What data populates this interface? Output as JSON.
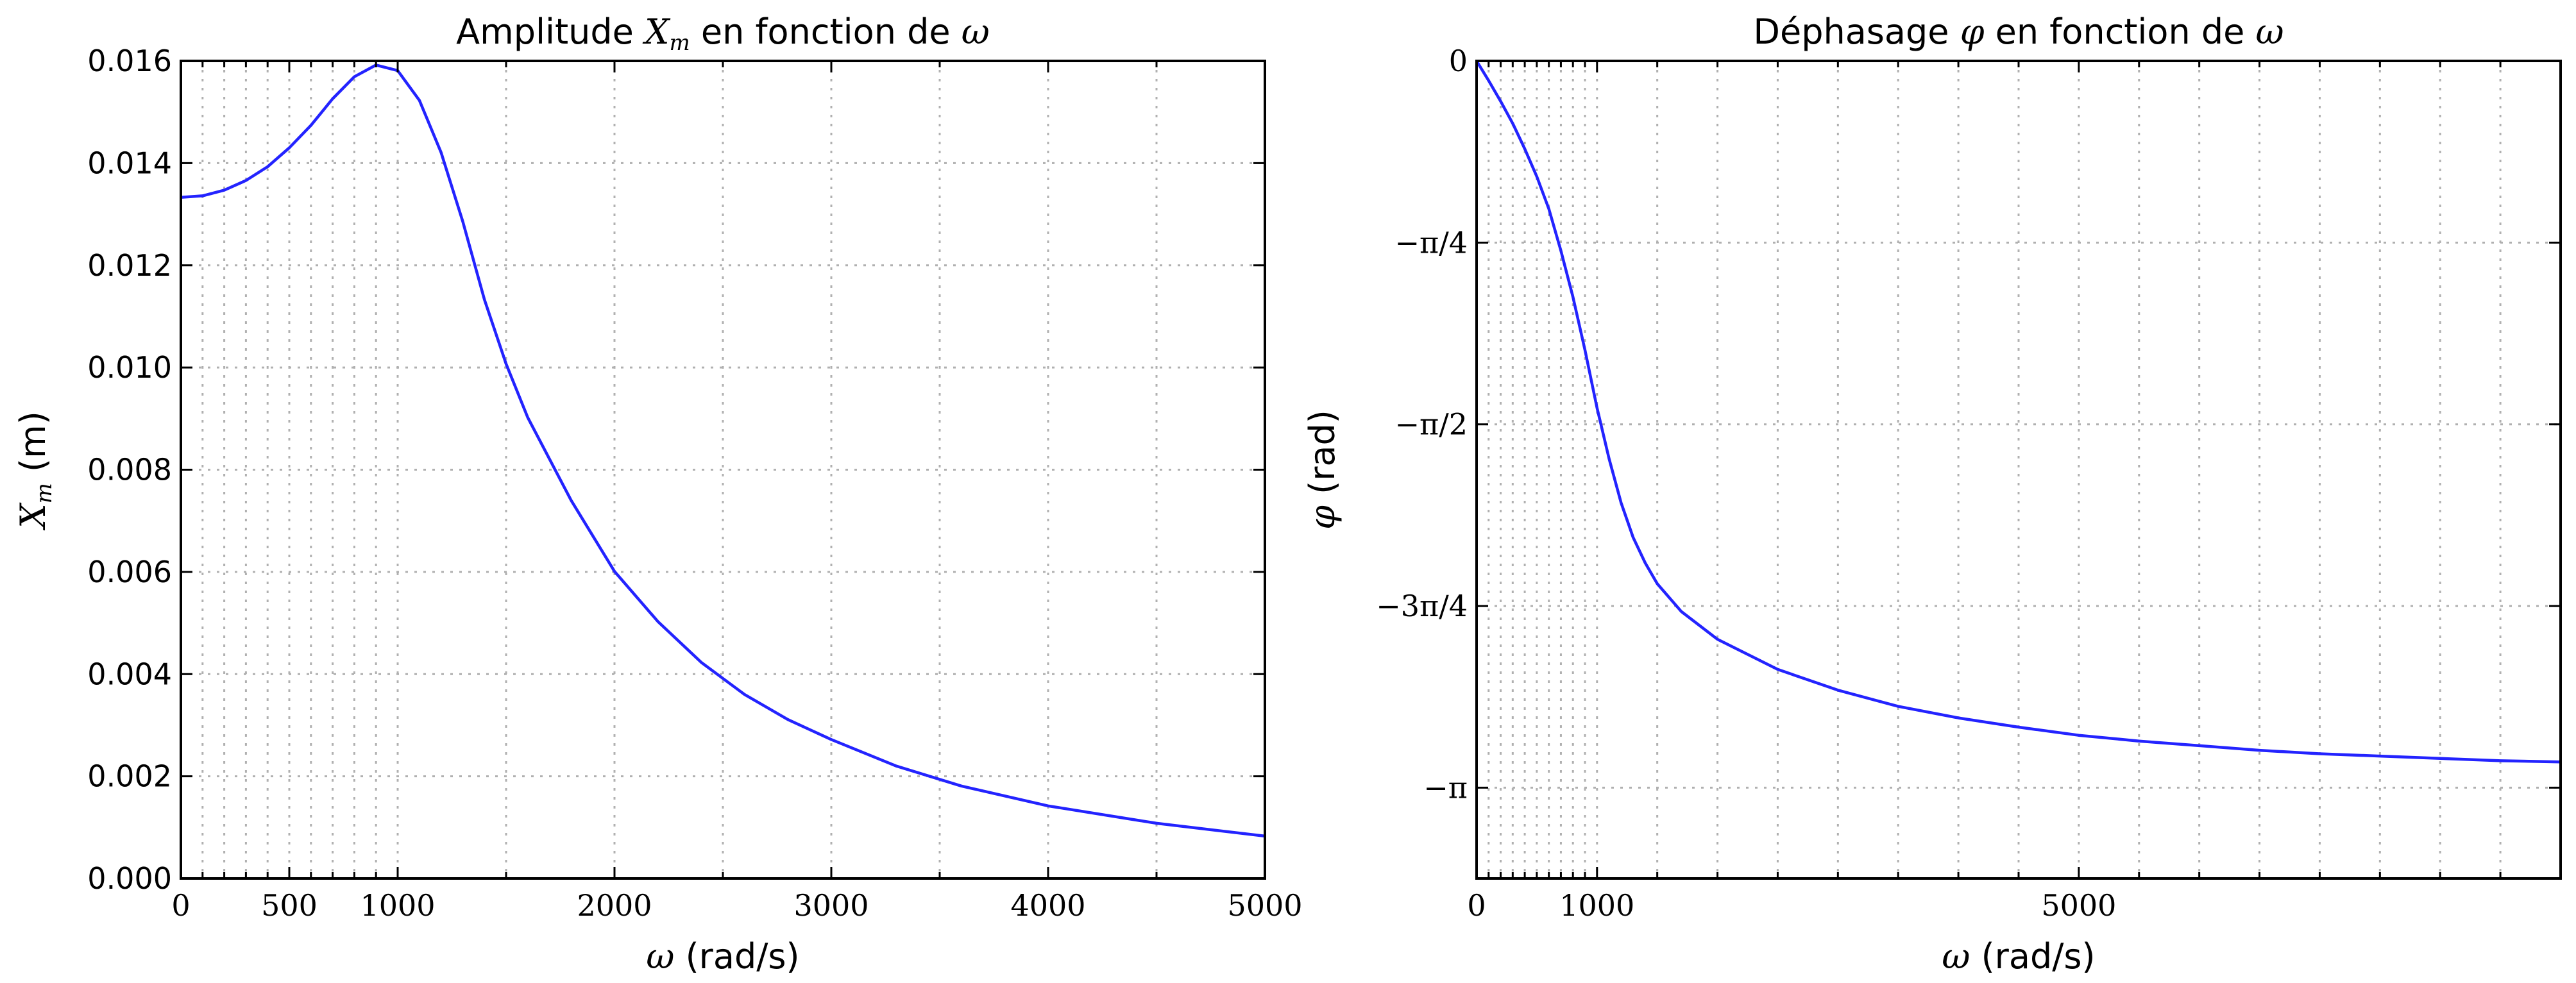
{
  "chart_data": [
    {
      "type": "line",
      "title": "Amplitude X_m en fonction de ω",
      "title_parts": [
        "Amplitude ",
        "X",
        "m",
        " en fonction de ",
        "ω"
      ],
      "xlabel": "ω (rad/s)",
      "xlabel_parts": [
        "ω",
        " (rad/s)"
      ],
      "ylabel": "X_m (m)",
      "ylabel_parts": [
        "X",
        "m",
        " (m)"
      ],
      "xlim": [
        0,
        5000
      ],
      "ylim": [
        0,
        0.016
      ],
      "grid": true,
      "legend": "none",
      "color": "#2323ff",
      "x_ticks": [
        0,
        500,
        1000,
        2000,
        3000,
        4000,
        5000
      ],
      "x_tick_labels": [
        "0",
        "500",
        "1000",
        "2000",
        "3000",
        "4000",
        "5000"
      ],
      "x_grid": [
        0,
        100,
        200,
        300,
        400,
        500,
        600,
        700,
        800,
        900,
        1000,
        1500,
        2000,
        2500,
        3000,
        3500,
        4000,
        4500,
        5000
      ],
      "y_ticks": [
        0,
        0.002,
        0.004,
        0.006,
        0.008,
        0.01,
        0.012,
        0.014,
        0.016
      ],
      "y_tick_labels": [
        "0.000",
        "0.002",
        "0.004",
        "0.006",
        "0.008",
        "0.010",
        "0.012",
        "0.014",
        "0.016"
      ],
      "series": [
        {
          "x": [
            0,
            100,
            200,
            300,
            400,
            500,
            600,
            700,
            800,
            900,
            1000,
            1100,
            1200,
            1300,
            1400,
            1500,
            1600,
            1800,
            2000,
            2200,
            2400,
            2600,
            2800,
            3000,
            3300,
            3600,
            4000,
            4500,
            5000
          ],
          "values": [
            0.01333,
            0.01336,
            0.01347,
            0.01366,
            0.01393,
            0.0143,
            0.01474,
            0.01526,
            0.01569,
            0.01592,
            0.01581,
            0.01523,
            0.01421,
            0.01286,
            0.01133,
            0.01007,
            0.00902,
            0.0074,
            0.00601,
            0.00503,
            0.00423,
            0.0036,
            0.00311,
            0.00272,
            0.0022,
            0.00181,
            0.00142,
            0.00108,
            0.00083
          ]
        }
      ]
    },
    {
      "type": "line",
      "title": "Déphasage φ en fonction de ω",
      "title_parts": [
        "Déphasage ",
        "φ",
        " en fonction de ",
        "ω"
      ],
      "xlabel": "ω (rad/s)",
      "xlabel_parts": [
        "ω",
        " (rad/s)"
      ],
      "ylabel": "φ (rad)",
      "ylabel_parts": [
        "φ",
        " (rad)"
      ],
      "xlim": [
        0,
        9000
      ],
      "ylim": [
        -3.534,
        0
      ],
      "grid": true,
      "legend": "none",
      "color": "#2323ff",
      "x_ticks": [
        0,
        1000,
        5000
      ],
      "x_tick_labels": [
        "0",
        "1000",
        "5000"
      ],
      "x_grid": [
        0,
        100,
        200,
        300,
        400,
        500,
        600,
        700,
        800,
        900,
        1000,
        1500,
        2000,
        2500,
        3000,
        3500,
        4000,
        4500,
        5000,
        5500,
        6000,
        6500,
        7000,
        7500,
        8000,
        8500,
        9000
      ],
      "y_ticks": [
        0,
        -0.7854,
        -1.5708,
        -2.3562,
        -3.1416
      ],
      "y_tick_labels": [
        "0",
        "−π/4",
        "−π/2",
        "−3π/4",
        "−π"
      ],
      "series": [
        {
          "x": [
            0,
            100,
            200,
            300,
            400,
            500,
            600,
            700,
            800,
            900,
            1000,
            1100,
            1200,
            1300,
            1400,
            1500,
            1700,
            2000,
            2500,
            3000,
            3500,
            4000,
            4500,
            5000,
            5500,
            6000,
            6500,
            7000,
            7500,
            8000,
            8500,
            9000
          ],
          "values": [
            0,
            -0.085,
            -0.175,
            -0.27,
            -0.38,
            -0.5,
            -0.64,
            -0.82,
            -1.02,
            -1.25,
            -1.5,
            -1.72,
            -1.91,
            -2.06,
            -2.17,
            -2.26,
            -2.38,
            -2.5,
            -2.63,
            -2.72,
            -2.79,
            -2.84,
            -2.88,
            -2.915,
            -2.94,
            -2.96,
            -2.98,
            -2.995,
            -3.005,
            -3.015,
            -3.025,
            -3.03
          ]
        }
      ]
    }
  ]
}
